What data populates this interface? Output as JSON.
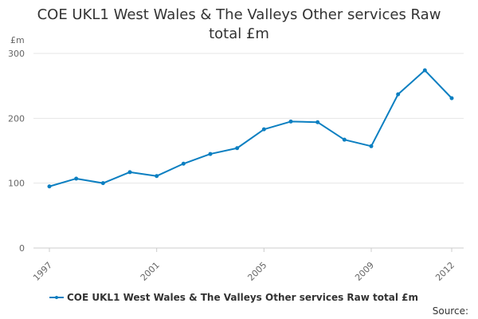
{
  "chart_data": {
    "type": "line",
    "title": "COE UKL1 West Wales & The Valleys Other services Raw total £m",
    "ylabel": "£m",
    "ylim": [
      0,
      300
    ],
    "yticks": [
      "0",
      "100",
      "200",
      "300"
    ],
    "x": [
      1997,
      1998,
      1999,
      2000,
      2001,
      2002,
      2003,
      2004,
      2005,
      2006,
      2007,
      2008,
      2009,
      2010,
      2011,
      2012
    ],
    "xlim": [
      1997,
      2012
    ],
    "xtick_labels": [
      "1997",
      "2001",
      "2005",
      "2009",
      "2012"
    ],
    "series": [
      {
        "name": "COE UKL1 West Wales & The Valleys Other services Raw total £m",
        "color": "#0b7fc1",
        "values": [
          95,
          107,
          100,
          117,
          111,
          130,
          145,
          154,
          183,
          195,
          194,
          167,
          157,
          237,
          274,
          231
        ]
      }
    ],
    "grid": true,
    "legend_position": "bottom-left"
  },
  "source_label": "Source:"
}
